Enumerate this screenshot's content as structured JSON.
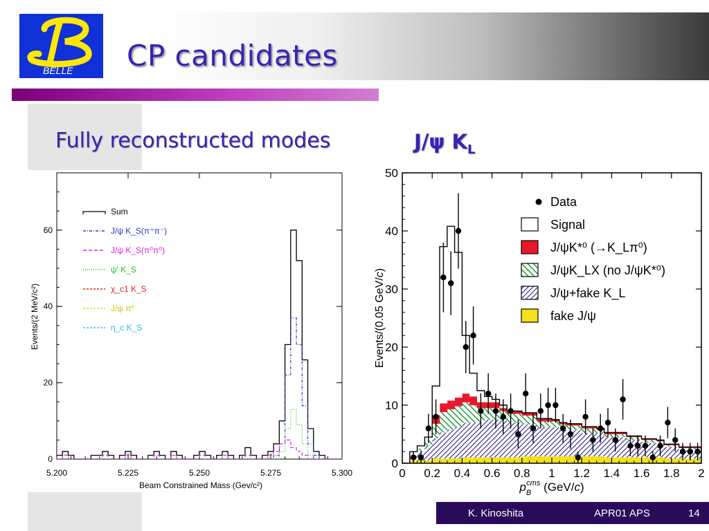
{
  "header": {
    "title": "CP candidates",
    "logo_text": "BELLE"
  },
  "subtitles": {
    "left": "Fully reconstructed modes",
    "right_main": "J/ψ K",
    "right_sub": "L"
  },
  "footer": {
    "author": "K. Kinoshita",
    "event": "APR01 APS",
    "page": "14"
  },
  "colors": {
    "title": "#3a22b5",
    "footer_bg": "#2a0a5a",
    "rule": "#8a008a"
  },
  "chart_data": [
    {
      "type": "line",
      "xlabel": "Beam Constrained Mass (Gev/c²)",
      "ylabel": "Events/(2 MeV/c²)",
      "xlim": [
        5.2,
        5.3
      ],
      "ylim": [
        0,
        75
      ],
      "xticks": [
        "5.200",
        "5.225",
        "5.250",
        "5.275",
        "5.300"
      ],
      "yticks": [
        "0",
        "20",
        "40",
        "60"
      ],
      "legend_position": "top-left",
      "legend": [
        {
          "label": "Sum",
          "color": "#000000",
          "dash": "solid"
        },
        {
          "label": "J/ψ K_S(π⁺π⁻)",
          "color": "#3030d0",
          "dash": "dashdot"
        },
        {
          "label": "J/ψ K_S(π⁰π⁰)",
          "color": "#e020e0",
          "dash": "dashed"
        },
        {
          "label": "ψ' K_S",
          "color": "#20c020",
          "dash": "dotted"
        },
        {
          "label": "χ_c1 K_S",
          "color": "#e02020",
          "dash": "dashed"
        },
        {
          "label": "J/ψ π⁰",
          "color": "#e0e020",
          "dash": "dashed"
        },
        {
          "label": "η_c K_S",
          "color": "#20d0e0",
          "dash": "dashed"
        }
      ],
      "bin_edges_start": 5.2,
      "bin_width": 0.002,
      "series": [
        {
          "name": "Sum",
          "values": [
            1,
            2,
            1,
            0,
            0,
            0,
            1,
            1,
            2,
            1,
            0,
            1,
            2,
            1,
            0,
            0,
            1,
            2,
            1,
            0,
            2,
            1,
            0,
            0,
            1,
            2,
            1,
            0,
            1,
            2,
            1,
            0,
            1,
            3,
            1,
            0,
            1,
            2,
            4,
            10,
            30,
            60,
            52,
            26,
            8,
            2,
            1,
            0,
            0,
            0
          ]
        },
        {
          "name": "J/ψ K_S(π⁺π⁻)",
          "values": [
            0,
            0,
            0,
            0,
            0,
            0,
            0,
            0,
            0,
            0,
            0,
            0,
            0,
            0,
            0,
            0,
            0,
            0,
            0,
            0,
            0,
            0,
            0,
            0,
            0,
            0,
            0,
            0,
            0,
            0,
            0,
            0,
            0,
            0,
            0,
            0,
            0,
            0,
            1,
            4,
            22,
            37,
            30,
            14,
            4,
            1,
            0,
            0,
            0,
            0
          ]
        },
        {
          "name": "ψ' K_S",
          "values": [
            0,
            0,
            0,
            0,
            0,
            0,
            0,
            0,
            0,
            0,
            0,
            0,
            0,
            0,
            0,
            0,
            0,
            0,
            0,
            0,
            0,
            0,
            0,
            0,
            0,
            0,
            0,
            0,
            0,
            0,
            0,
            0,
            0,
            0,
            0,
            0,
            0,
            0,
            0,
            2,
            8,
            13,
            9,
            4,
            1,
            0,
            0,
            0,
            0,
            0
          ]
        },
        {
          "name": "J/ψ K_S(π⁰π⁰)",
          "values": [
            0,
            1,
            0,
            0,
            0,
            0,
            0,
            0,
            1,
            0,
            0,
            0,
            1,
            0,
            0,
            0,
            0,
            1,
            0,
            0,
            1,
            0,
            0,
            0,
            0,
            1,
            0,
            0,
            0,
            1,
            0,
            0,
            0,
            1,
            0,
            0,
            0,
            1,
            2,
            4,
            5,
            3,
            2,
            1,
            0,
            0,
            0,
            0,
            0,
            0
          ]
        }
      ]
    },
    {
      "type": "bar",
      "xlabel": "p_B^cms (GeV/c)",
      "ylabel": "Events/(0.05 GeV/c)",
      "xlim": [
        0,
        2
      ],
      "ylim": [
        0,
        50
      ],
      "xticks": [
        "0",
        "0.2",
        "0.4",
        "0.6",
        "0.8",
        "1",
        "1.2",
        "1.4",
        "1.6",
        "1.8",
        "2"
      ],
      "yticks": [
        "0",
        "10",
        "20",
        "30",
        "40",
        "50"
      ],
      "legend_position": "top-right",
      "legend": [
        {
          "label": "Data",
          "kind": "point"
        },
        {
          "label": "Signal",
          "kind": "open"
        },
        {
          "label": "J/ψK*⁰ (→K_Lπ⁰)",
          "kind": "red"
        },
        {
          "label": "J/ψK_LX (no J/ψK*⁰)",
          "kind": "green-hatch"
        },
        {
          "label": "J/ψ+fake K_L",
          "kind": "blue-hatch"
        },
        {
          "label": "fake J/ψ",
          "kind": "yellow"
        }
      ],
      "x_centers": [
        0.025,
        0.075,
        0.125,
        0.175,
        0.225,
        0.275,
        0.325,
        0.375,
        0.425,
        0.475,
        0.525,
        0.575,
        0.625,
        0.675,
        0.725,
        0.775,
        0.825,
        0.875,
        0.925,
        0.975,
        1.025,
        1.075,
        1.125,
        1.175,
        1.225,
        1.275,
        1.325,
        1.375,
        1.425,
        1.475,
        1.525,
        1.575,
        1.625,
        1.675,
        1.725,
        1.775,
        1.825,
        1.875,
        1.925,
        1.975
      ],
      "series": [
        {
          "name": "fake J/ψ",
          "values": [
            0,
            0.5,
            0.5,
            0.5,
            0.8,
            0.8,
            0.8,
            0.8,
            1,
            1,
            1,
            1,
            1,
            1,
            1,
            1,
            1.2,
            1.2,
            1.2,
            1.2,
            1.2,
            1.2,
            1.2,
            1.2,
            1.2,
            1.2,
            1.2,
            1,
            1,
            1,
            1,
            1,
            1,
            1,
            1,
            0.8,
            0.8,
            0.8,
            0.8,
            0.8
          ]
        },
        {
          "name": "J/ψ+fake K_L",
          "values": [
            0,
            1,
            1.5,
            2.5,
            3.5,
            4.5,
            5,
            5.5,
            6,
            6,
            6,
            6.5,
            6.5,
            6.5,
            6,
            6,
            5.5,
            5.5,
            5,
            5,
            5,
            4.5,
            4.5,
            4.5,
            4,
            4,
            4,
            3.5,
            3.5,
            3.5,
            3,
            3,
            2.5,
            2.5,
            2.5,
            2,
            2,
            1.5,
            1.5,
            1.5
          ]
        },
        {
          "name": "J/ψK_LX (no J/ψK*⁰)",
          "values": [
            0,
            0,
            0.5,
            1,
            2.5,
            3.5,
            3.5,
            3.5,
            3.5,
            3,
            2.5,
            2,
            2,
            1.5,
            1.5,
            1.5,
            1.5,
            1.5,
            1,
            1,
            1,
            1,
            0.8,
            0.8,
            0.8,
            0.8,
            0.5,
            0.5,
            0.5,
            0.5,
            0.5,
            0.5,
            0.5,
            0.5,
            0.3,
            0.3,
            0.3,
            0.3,
            0.3,
            0.3
          ]
        },
        {
          "name": "J/ψK*⁰ (→K_Lπ⁰)",
          "values": [
            0,
            0,
            0,
            0,
            1.5,
            1.5,
            1.5,
            1.5,
            1.5,
            1.5,
            1,
            1,
            1,
            0.5,
            0.5,
            0.5,
            0.5,
            0.5,
            0.5,
            0.5,
            0.3,
            0.3,
            0.3,
            0.3,
            0.3,
            0.3,
            0.3,
            0.3,
            0.3,
            0.3,
            0.2,
            0.2,
            0.2,
            0.2,
            0.2,
            0.2,
            0.2,
            0.2,
            0.2,
            0.2
          ]
        },
        {
          "name": "Signal",
          "values": [
            0,
            0.5,
            0.5,
            0.5,
            5,
            27,
            30,
            25,
            10,
            4,
            2,
            1,
            0.5,
            0.5,
            0,
            0,
            0,
            0,
            0,
            0,
            0,
            0,
            0,
            0,
            0,
            0,
            0,
            0,
            0,
            0,
            0,
            0,
            0,
            0,
            0,
            0,
            0,
            0,
            0,
            0
          ]
        },
        {
          "name": "Data",
          "values": [
            null,
            1,
            1,
            6,
            8,
            32,
            31,
            40,
            20,
            22,
            9,
            12,
            9,
            8,
            9,
            5,
            12,
            6,
            9,
            10,
            10,
            6,
            5,
            1,
            8,
            4,
            6,
            7,
            4,
            11,
            3,
            3,
            3,
            1,
            3,
            7,
            4,
            2,
            2,
            2
          ],
          "errors": [
            null,
            1,
            1,
            2.5,
            3,
            6,
            5.5,
            6.5,
            4.5,
            5,
            3,
            3.5,
            3,
            3,
            3,
            2.5,
            3.5,
            2.5,
            3,
            3,
            3,
            2.5,
            2.5,
            1,
            3,
            2,
            2.5,
            2.5,
            2,
            3.5,
            1.8,
            1.8,
            1.8,
            1,
            1.8,
            2.7,
            2,
            1.5,
            1.5,
            1.5
          ]
        }
      ]
    }
  ]
}
